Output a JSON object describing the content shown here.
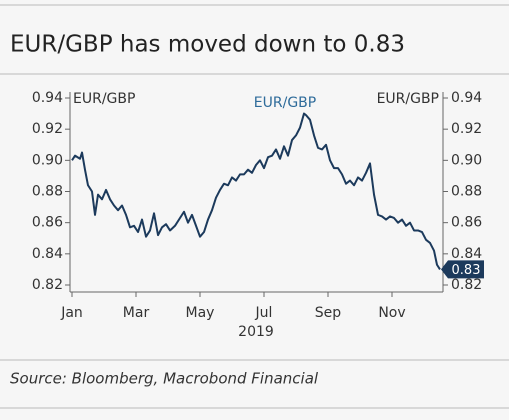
{
  "chart_data": {
    "type": "line",
    "title": "EUR/GBP has moved down to 0.83",
    "source": "Source: Bloomberg, Macrobond Financial",
    "xlabel": "2019",
    "annotations": [
      "EUR/GBP",
      "EUR/GBP",
      "0.83"
    ],
    "xlim": [
      0,
      11.5
    ],
    "xticks": [
      {
        "value": 0,
        "label": "Jan"
      },
      {
        "value": 2,
        "label": "Mar"
      },
      {
        "value": 4,
        "label": "May"
      },
      {
        "value": 6,
        "label": "Jul"
      },
      {
        "value": 8,
        "label": "Sep"
      },
      {
        "value": 10,
        "label": "Nov"
      }
    ],
    "ylim": [
      0.82,
      0.94
    ],
    "yticks": [
      0.82,
      0.84,
      0.86,
      0.88,
      {
        "value": 0.9,
        "label": "0.90"
      },
      0.92,
      0.94
    ],
    "y2lim": [
      0.82,
      0.94
    ],
    "y2ticks": [
      0.82,
      0.84,
      0.86,
      0.88,
      {
        "value": 0.9,
        "label": "0.90"
      },
      0.92,
      0.94
    ],
    "x": [
      0,
      0.094,
      0.25,
      0.313,
      0.406,
      0.5,
      0.625,
      0.719,
      0.813,
      0.938,
      1.063,
      1.188,
      1.313,
      1.438,
      1.563,
      1.688,
      1.813,
      1.938,
      2.063,
      2.188,
      2.313,
      2.438,
      2.563,
      2.688,
      2.813,
      2.938,
      3.063,
      3.219,
      3.375,
      3.5,
      3.625,
      3.75,
      3.875,
      4,
      4.125,
      4.25,
      4.375,
      4.5,
      4.625,
      4.75,
      4.875,
      5,
      5.125,
      5.25,
      5.375,
      5.5,
      5.625,
      5.75,
      5.875,
      6,
      6.125,
      6.25,
      6.375,
      6.5,
      6.625,
      6.75,
      6.875,
      7,
      7.125,
      7.25,
      7.313,
      7.438,
      7.563,
      7.688,
      7.813,
      7.938,
      8.063,
      8.188,
      8.313,
      8.438,
      8.563,
      8.688,
      8.813,
      8.938,
      9.063,
      9.188,
      9.313,
      9.438,
      9.563,
      9.688,
      9.813,
      9.938,
      10.063,
      10.188,
      10.313,
      10.438,
      10.563,
      10.688,
      10.813,
      10.938,
      11.063,
      11.188,
      11.313,
      11.406,
      11.5
    ],
    "series": [
      {
        "name": "EUR/GBP",
        "color": "#1c3a5c",
        "label_color": "#2e6b9a",
        "values": [
          0.9,
          0.903,
          0.901,
          0.905,
          0.894,
          0.884,
          0.88,
          0.865,
          0.878,
          0.875,
          0.881,
          0.875,
          0.871,
          0.868,
          0.871,
          0.865,
          0.857,
          0.858,
          0.854,
          0.862,
          0.851,
          0.855,
          0.866,
          0.852,
          0.857,
          0.859,
          0.855,
          0.858,
          0.863,
          0.867,
          0.86,
          0.865,
          0.858,
          0.851,
          0.854,
          0.862,
          0.868,
          0.876,
          0.881,
          0.885,
          0.884,
          0.889,
          0.887,
          0.891,
          0.891,
          0.894,
          0.892,
          0.897,
          0.9,
          0.895,
          0.902,
          0.903,
          0.907,
          0.901,
          0.909,
          0.903,
          0.913,
          0.916,
          0.921,
          0.93,
          0.929,
          0.926,
          0.916,
          0.908,
          0.907,
          0.91,
          0.9,
          0.895,
          0.895,
          0.891,
          0.885,
          0.887,
          0.884,
          0.889,
          0.887,
          0.892,
          0.898,
          0.878,
          0.865,
          0.864,
          0.862,
          0.864,
          0.863,
          0.86,
          0.862,
          0.858,
          0.86,
          0.855,
          0.855,
          0.854,
          0.849,
          0.847,
          0.842,
          0.833,
          0.83
        ]
      }
    ]
  }
}
